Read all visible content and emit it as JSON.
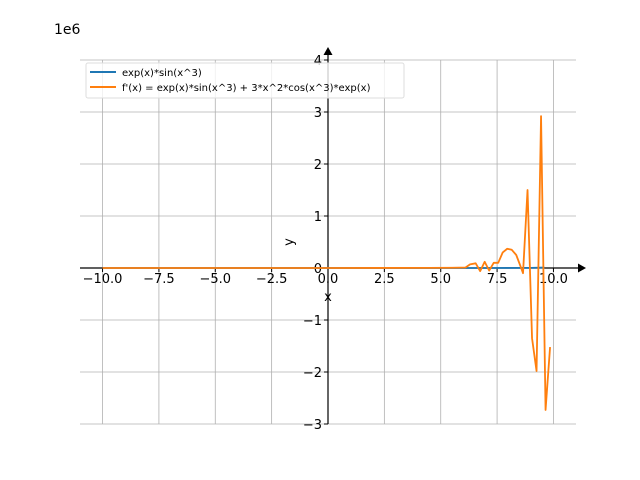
{
  "chart_data": {
    "type": "line",
    "scale_label": "1e6",
    "xlabel": "x",
    "ylabel": "y",
    "xlim": [
      -11.0,
      11.0
    ],
    "ylim": [
      -3.0,
      4.0
    ],
    "y_multiplier": 1000000,
    "x_ticks": [
      -10.0,
      -7.5,
      -5.0,
      -2.5,
      0.0,
      2.5,
      5.0,
      7.5,
      10.0
    ],
    "x_tick_labels": [
      "−10.0",
      "−7.5",
      "−5.0",
      "−2.5",
      "0.0",
      "2.5",
      "5.0",
      "7.5",
      "10.0"
    ],
    "y_ticks": [
      -3,
      -2,
      -1,
      0,
      1,
      2,
      3,
      4
    ],
    "y_tick_labels": [
      "−3",
      "−2",
      "−1",
      "0",
      "1",
      "2",
      "3",
      "4"
    ],
    "grid": true,
    "legend_position": "top-left",
    "colors": {
      "series1": "#1f77b4",
      "series2": "#ff7f0e",
      "grid": "#b0b0b0"
    },
    "series": [
      {
        "name": "exp(x)*sin(x^3)",
        "points": [
          [
            -10,
            0
          ],
          [
            0,
            0
          ],
          [
            5,
            0.0001
          ],
          [
            6,
            0.0002
          ],
          [
            7,
            -0.0003
          ],
          [
            8,
            0.0015
          ],
          [
            9,
            0.003
          ],
          [
            9.6,
            0.008
          ]
        ]
      },
      {
        "name": "f'(x) = exp(x)*sin(x^3) + 3*x^2*cos(x^3)*exp(x)",
        "points": [
          [
            -10,
            0
          ],
          [
            0,
            0
          ],
          [
            4.5,
            0.002
          ],
          [
            5.5,
            0.005
          ],
          [
            6.1,
            0.01
          ],
          [
            6.3,
            0.07
          ],
          [
            6.55,
            0.09
          ],
          [
            6.75,
            -0.06
          ],
          [
            6.95,
            0.12
          ],
          [
            7.15,
            -0.05
          ],
          [
            7.35,
            0.1
          ],
          [
            7.55,
            0.1
          ],
          [
            7.75,
            0.3
          ],
          [
            7.95,
            0.37
          ],
          [
            8.15,
            0.35
          ],
          [
            8.35,
            0.25
          ],
          [
            8.55,
            0.02
          ],
          [
            8.65,
            -0.1
          ],
          [
            8.85,
            1.5
          ],
          [
            9.05,
            -1.35
          ],
          [
            9.25,
            -1.98
          ],
          [
            9.45,
            2.92
          ],
          [
            9.65,
            -2.73
          ],
          [
            9.85,
            -1.52
          ]
        ]
      }
    ]
  }
}
